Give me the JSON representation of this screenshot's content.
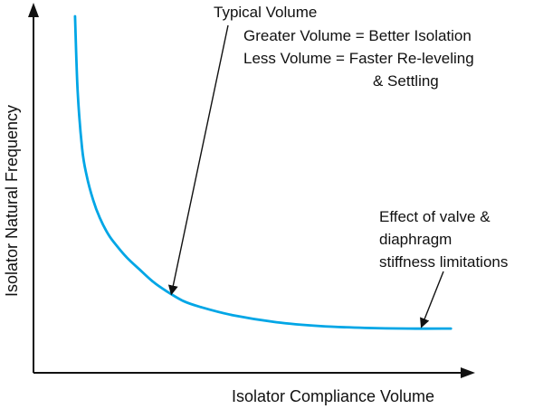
{
  "colors": {
    "curve": "#00a6e6",
    "axis": "#111111",
    "text": "#111111",
    "background": "#ffffff"
  },
  "chart_data": {
    "type": "line",
    "title": "",
    "xlabel": "Isolator Compliance Volume",
    "ylabel": "Isolator Natural Frequency",
    "xlim": [
      0,
      100
    ],
    "ylim": [
      0,
      100
    ],
    "tick_labels": false,
    "grid": false,
    "series": [
      {
        "x": [
          9.4,
          10.0,
          11.0,
          12.0,
          13.5,
          15.0,
          17.0,
          19.0,
          21.0,
          24.0,
          27.0,
          30.0,
          34.0,
          38.0,
          45.0,
          55.0,
          65.0,
          75.0,
          85.0,
          94.5
        ],
        "y": [
          100.0,
          79.0,
          63.0,
          55.5,
          48.5,
          43.5,
          38.7,
          35.4,
          32.5,
          29.0,
          25.6,
          23.0,
          20.1,
          18.4,
          16.2,
          14.2,
          13.1,
          12.6,
          12.4,
          12.4
        ]
      }
    ],
    "annotations": [
      {
        "lines": [
          "Typical Volume"
        ],
        "arrow_to": {
          "x": 31.2,
          "y": 22.0
        }
      },
      {
        "lines": [
          "Greater Volume = Better Isolation",
          "Less Volume = Faster Re-leveling",
          "& Settling"
        ],
        "arrow_to": null
      },
      {
        "lines": [
          "Effect of valve &",
          "diaphragm",
          "stiffness limitations"
        ],
        "arrow_to": {
          "x": 87.8,
          "y": 12.8
        }
      }
    ]
  }
}
